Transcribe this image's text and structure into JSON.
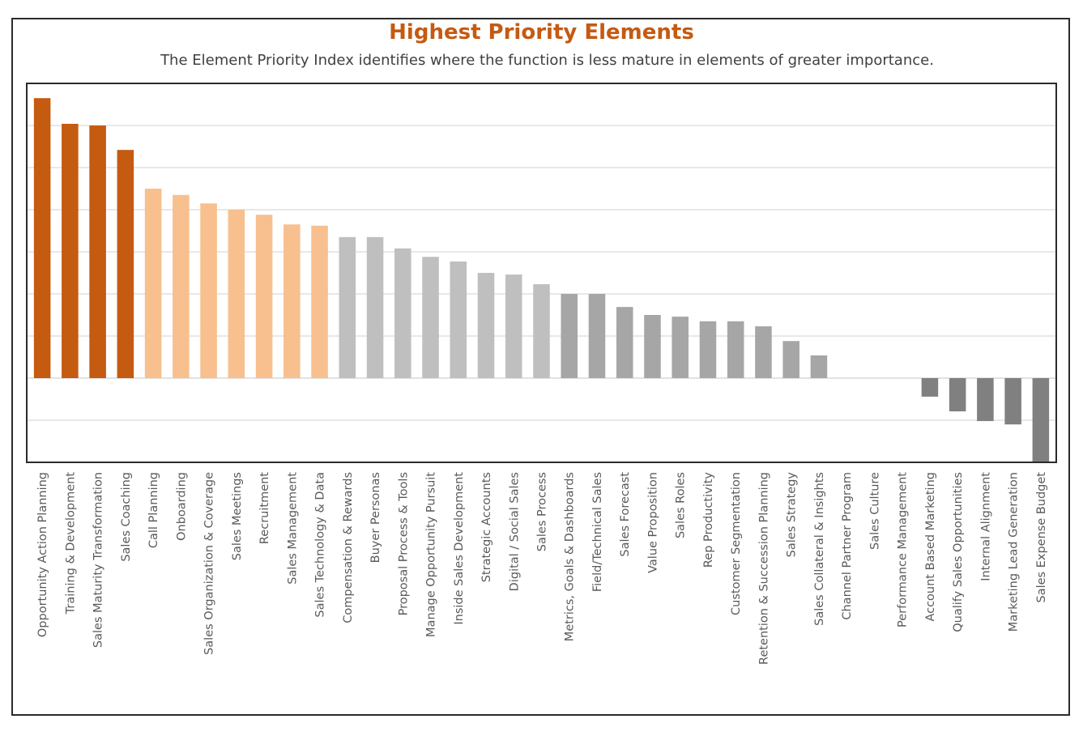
{
  "chart_data": {
    "type": "bar",
    "title": "Highest Priority Elements",
    "subtitle": "The Element Priority Index identifies where the function is less mature in elements of greater importance.",
    "xlabel": "",
    "ylabel": "",
    "ylim": [
      -2,
      7
    ],
    "y_gridline_step": 1,
    "y_tick_labels_visible": false,
    "grid": true,
    "legend": "none",
    "categories": [
      "Opportunity Action Planning",
      "Training & Development",
      "Sales Maturity Transformation",
      "Sales Coaching",
      "Call Planning",
      "Onboarding",
      "Sales Organization & Coverage",
      "Sales Meetings",
      "Recruitment",
      "Sales Management",
      "Sales Technology & Data",
      "Compensation & Rewards",
      "Buyer Personas",
      "Proposal Process & Tools",
      "Manage Opportunity Pursuit",
      "Inside Sales Development",
      "Strategic Accounts",
      "Digital / Social Sales",
      "Sales Process",
      "Metrics, Goals & Dashboards",
      "Field/Technical Sales",
      "Sales Forecast",
      "Value Proposition",
      "Sales Roles",
      "Rep Productivity",
      "Customer Segmentation",
      "Retention & Succession Planning",
      "Sales Strategy",
      "Sales Collateral & Insights",
      "Channel Partner Program",
      "Sales Culture",
      "Performance Management",
      "Account Based Marketing",
      "Qualify Sales Opportunities",
      "Internal Alignment",
      "Marketing Lead Generation",
      "Sales Expense Budget"
    ],
    "values": [
      6.65,
      6.04,
      6.0,
      5.42,
      4.5,
      4.35,
      4.15,
      4.0,
      3.88,
      3.65,
      3.62,
      3.35,
      3.35,
      3.08,
      2.88,
      2.77,
      2.5,
      2.46,
      2.23,
      2.0,
      2.0,
      1.69,
      1.5,
      1.46,
      1.35,
      1.35,
      1.23,
      0.88,
      0.54,
      0,
      0,
      0,
      -0.44,
      -0.79,
      -1.02,
      -1.1,
      -2.0
    ],
    "bar_tiers": [
      "highest",
      "highest",
      "highest",
      "highest",
      "high",
      "high",
      "high",
      "high",
      "high",
      "high",
      "high",
      "medium",
      "medium",
      "medium",
      "medium",
      "medium",
      "medium",
      "medium",
      "medium",
      "low",
      "low",
      "low",
      "low",
      "low",
      "low",
      "low",
      "low",
      "low",
      "low",
      "low",
      "low",
      "low",
      "negative",
      "negative",
      "negative",
      "negative",
      "negative"
    ],
    "tier_colors": {
      "highest": "#C55A11",
      "high": "#F8BF8F",
      "medium": "#BFBFBF",
      "low": "#A6A6A6",
      "negative": "#808080"
    },
    "colors": {
      "title": "#C55A11",
      "subtitle": "#404040",
      "gridline": "#D9D9D9",
      "frame": "#2b2b2b",
      "tick_label": "#595959"
    }
  }
}
